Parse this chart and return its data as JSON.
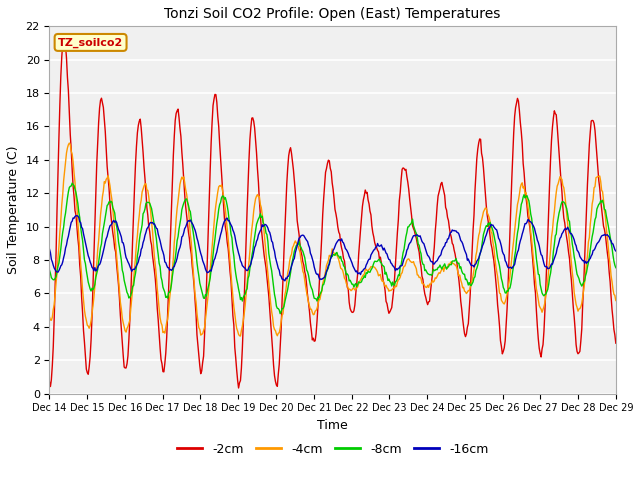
{
  "title": "Tonzi Soil CO2 Profile: Open (East) Temperatures",
  "xlabel": "Time",
  "ylabel": "Soil Temperature (C)",
  "ylim": [
    0,
    22
  ],
  "fig_bg": "#ffffff",
  "plot_bg": "#f0f0f0",
  "series": {
    "-2cm": {
      "color": "#dd0000",
      "label": "-2cm"
    },
    "-4cm": {
      "color": "#ff9900",
      "label": "-4cm"
    },
    "-8cm": {
      "color": "#00cc00",
      "label": "-8cm"
    },
    "-16cm": {
      "color": "#0000bb",
      "label": "-16cm"
    }
  },
  "annotation_box": {
    "text": "TZ_soilco2",
    "facecolor": "#ffffcc",
    "edgecolor": "#cc8800",
    "textcolor": "#cc0000"
  },
  "x_tick_labels": [
    "Dec 14",
    "Dec 15",
    "Dec 16",
    "Dec 17",
    "Dec 18",
    "Dec 19",
    "Dec 20",
    "Dec 21",
    "Dec 22",
    "Dec 23",
    "Dec 24",
    "Dec 25",
    "Dec 26",
    "Dec 27",
    "Dec 28",
    "Dec 29"
  ],
  "y_ticks": [
    0,
    2,
    4,
    6,
    8,
    10,
    12,
    14,
    16,
    18,
    20,
    22
  ],
  "num_points": 600,
  "time_days": 15
}
